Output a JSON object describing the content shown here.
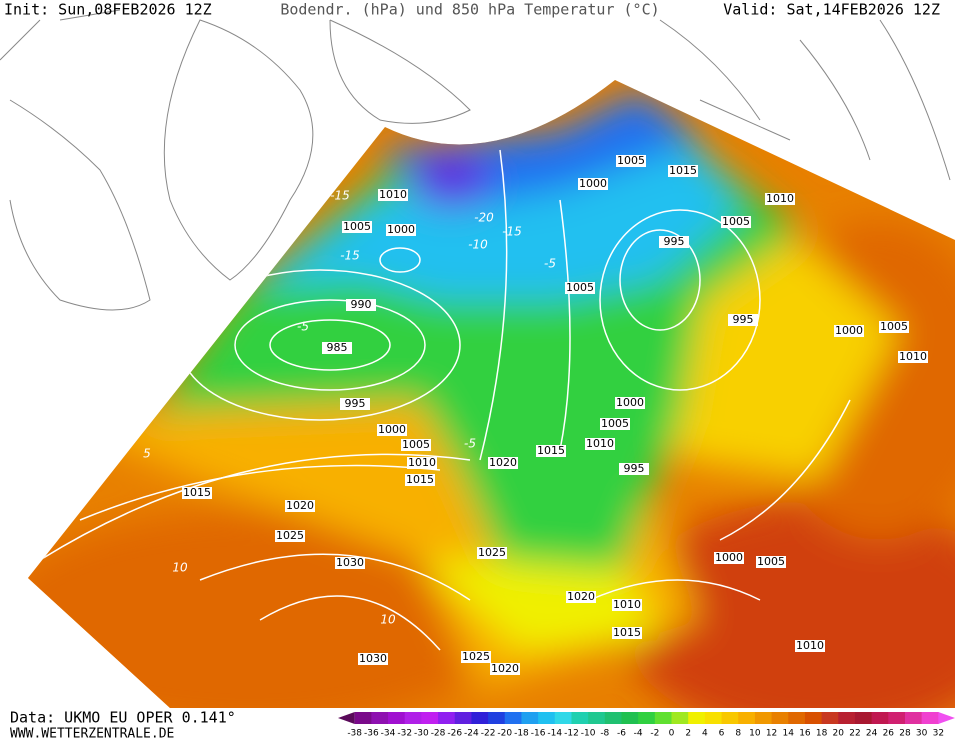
{
  "header": {
    "init": "Init: Sun,08FEB2026 12Z",
    "title": "Bodendr. (hPa) und 850 hPa Temperatur (°C)",
    "valid": "Valid: Sat,14FEB2026 12Z"
  },
  "footer": {
    "data": "Data: UKMO EU OPER 0.141°",
    "site": "WWW.WETTERZENTRALE.DE"
  },
  "isobar_labels": [
    1010,
    1005,
    1000,
    990,
    985,
    995,
    1000,
    1005,
    1010,
    1015,
    1015,
    1020,
    1025,
    1030,
    1030,
    1025,
    1020,
    1020,
    1015,
    1010,
    1005,
    1000,
    995,
    1025,
    1020,
    1010,
    1015,
    1000,
    1005,
    1010,
    1005,
    1000,
    1005,
    1015,
    1010,
    1005,
    995,
    995,
    1000,
    1005,
    1010
  ],
  "temperature_labels": [
    -15,
    -20,
    -15,
    -15,
    -10,
    -5,
    -5,
    5,
    10,
    10,
    -5
  ],
  "colorbar": {
    "labels": [
      -38,
      -36,
      -34,
      -32,
      -30,
      -28,
      -26,
      -24,
      -22,
      -20,
      -18,
      -16,
      -14,
      -12,
      -10,
      -8,
      -6,
      -4,
      -2,
      0,
      2,
      4,
      6,
      8,
      10,
      12,
      14,
      16,
      18,
      20,
      22,
      24,
      26,
      28,
      30,
      32
    ],
    "colors": [
      "#5a0a5a",
      "#7a0a8a",
      "#8e10b0",
      "#a010d0",
      "#b020e8",
      "#c020f0",
      "#9020f0",
      "#6020e0",
      "#3020d8",
      "#2040e0",
      "#2070f0",
      "#20a0f0",
      "#20c0f0",
      "#30d8e8",
      "#20d0b0",
      "#20c890",
      "#20c070",
      "#20c050",
      "#30d040",
      "#60e030",
      "#a0e820",
      "#f0f000",
      "#f8e000",
      "#f8c800",
      "#f8b000",
      "#f09800",
      "#e88000",
      "#e06800",
      "#d85000",
      "#c83820",
      "#b82030",
      "#a81830",
      "#c01850",
      "#d02070",
      "#e030a0",
      "#f040d0",
      "#f050f0"
    ]
  }
}
